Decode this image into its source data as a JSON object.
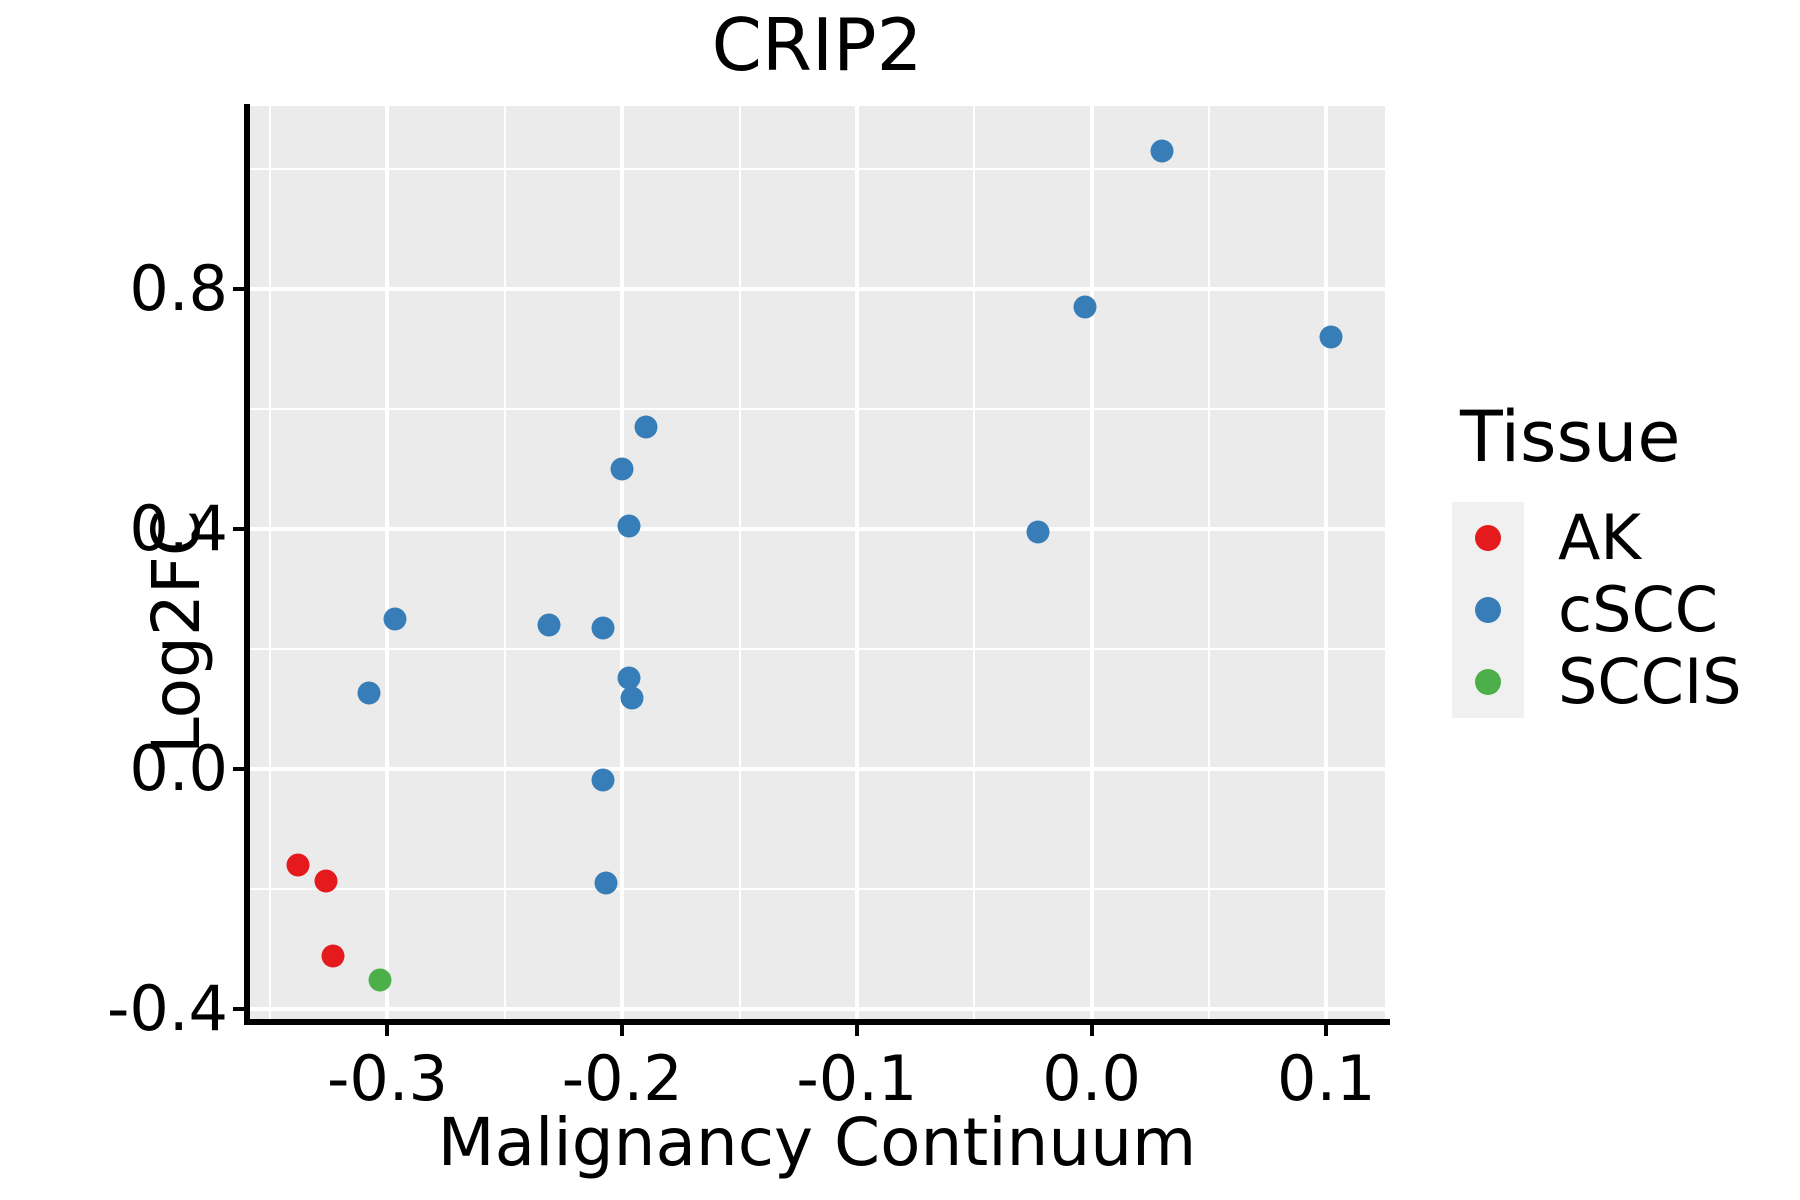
{
  "figure": {
    "title": "CRIP2",
    "background": "#ffffff"
  },
  "legend": {
    "title": "Tissue",
    "items": [
      {
        "label": "AK",
        "color": "#e41a1c"
      },
      {
        "label": "cSCC",
        "color": "#377eb8"
      },
      {
        "label": "SCCIS",
        "color": "#4daf4a"
      }
    ]
  },
  "chart_data": {
    "type": "scatter",
    "title": "CRIP2",
    "xlabel": "Malignancy Continuum",
    "ylabel": "Log2FC",
    "xlim": [
      -0.359,
      0.125
    ],
    "ylim": [
      -0.42,
      1.105
    ],
    "x_major_ticks": {
      "values": [
        -0.3,
        -0.2,
        -0.1,
        0.0,
        0.1
      ],
      "labels": [
        "-0.3",
        "-0.2",
        "-0.1",
        "0.0",
        "0.1"
      ]
    },
    "y_major_ticks": {
      "values": [
        -0.4,
        0.0,
        0.4,
        0.8
      ],
      "labels": [
        "-0.4",
        "0.0",
        "0.4",
        "0.8"
      ]
    },
    "x_minor_ticks": [
      -0.35,
      -0.25,
      -0.15,
      -0.05,
      0.05
    ],
    "y_minor_ticks": [
      -0.2,
      0.2,
      0.6,
      1.0
    ],
    "panel_background": "#ebebeb",
    "gridline_color": "#ffffff",
    "grid": true,
    "legend_position": "right",
    "series": [
      {
        "name": "AK",
        "color": "#e41a1c",
        "points": [
          [
            -0.338,
            -0.16
          ],
          [
            -0.326,
            -0.187
          ],
          [
            -0.323,
            -0.312
          ]
        ]
      },
      {
        "name": "cSCC",
        "color": "#377eb8",
        "points": [
          [
            0.03,
            1.03
          ],
          [
            -0.003,
            0.77
          ],
          [
            0.102,
            0.72
          ],
          [
            -0.19,
            0.57
          ],
          [
            -0.2,
            0.5
          ],
          [
            -0.197,
            0.405
          ],
          [
            -0.023,
            0.395
          ],
          [
            -0.297,
            0.25
          ],
          [
            -0.231,
            0.24
          ],
          [
            -0.208,
            0.235
          ],
          [
            -0.197,
            0.152
          ],
          [
            -0.196,
            0.118
          ],
          [
            -0.308,
            0.127
          ],
          [
            -0.208,
            -0.018
          ],
          [
            -0.207,
            -0.19
          ]
        ]
      },
      {
        "name": "SCCIS",
        "color": "#4daf4a",
        "points": [
          [
            -0.303,
            -0.352
          ]
        ]
      }
    ]
  }
}
